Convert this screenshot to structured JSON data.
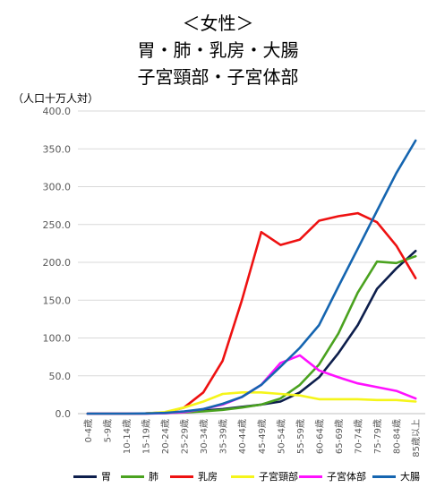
{
  "title_lines": [
    "＜女性＞",
    "胃・肺・乳房・大腸",
    "子宮頸部・子宮体部"
  ],
  "chart_data": {
    "type": "line",
    "unit_label": "（人口十万人対）",
    "ylim": [
      0,
      400
    ],
    "yticks": [
      "0.0",
      "50.0",
      "100.0",
      "150.0",
      "200.0",
      "250.0",
      "300.0",
      "350.0",
      "400.0"
    ],
    "categories": [
      "0-4歳",
      "5-9歳",
      "10-14歳",
      "15-19歳",
      "20-24歳",
      "25-29歳",
      "30-34歳",
      "35-39歳",
      "40-44歳",
      "45-49歳",
      "50-54歳",
      "55-59歳",
      "60-64歳",
      "65-69歳",
      "70-74歳",
      "75-79歳",
      "80-84歳",
      "85歳以上"
    ],
    "series": [
      {
        "name": "胃",
        "color": "#0d1e4c",
        "values": [
          0,
          0,
          0,
          0.2,
          0.8,
          2,
          4,
          6,
          9,
          12,
          16,
          28,
          48,
          80,
          117,
          165,
          192,
          215
        ]
      },
      {
        "name": "肺",
        "color": "#4aa21f",
        "values": [
          0,
          0,
          0,
          0.2,
          0.5,
          1.5,
          3,
          5,
          8,
          12,
          20,
          38,
          65,
          106,
          160,
          201,
          199,
          208
        ]
      },
      {
        "name": "乳房",
        "color": "#ee1111",
        "values": [
          0,
          0,
          0,
          0.3,
          1.5,
          8,
          28,
          70,
          150,
          240,
          223,
          230,
          255,
          261,
          265,
          253,
          222,
          179
        ]
      },
      {
        "name": "子宮頸部",
        "color": "#f5f51a",
        "values": [
          0,
          0,
          0,
          0.2,
          2,
          8,
          16,
          26,
          28,
          28,
          26,
          24,
          19,
          19,
          19,
          18,
          18,
          16
        ]
      },
      {
        "name": "子宮体部",
        "color": "#ff11ff",
        "values": [
          0,
          0,
          0,
          0.1,
          0.5,
          2,
          6,
          12,
          22,
          38,
          67,
          77,
          57,
          48,
          40,
          35,
          30,
          20
        ]
      },
      {
        "name": "大腸",
        "color": "#1565b0",
        "values": [
          0,
          0,
          0,
          0.2,
          1,
          3,
          6,
          13,
          22,
          38,
          62,
          87,
          117,
          168,
          218,
          268,
          318,
          361
        ]
      }
    ]
  }
}
